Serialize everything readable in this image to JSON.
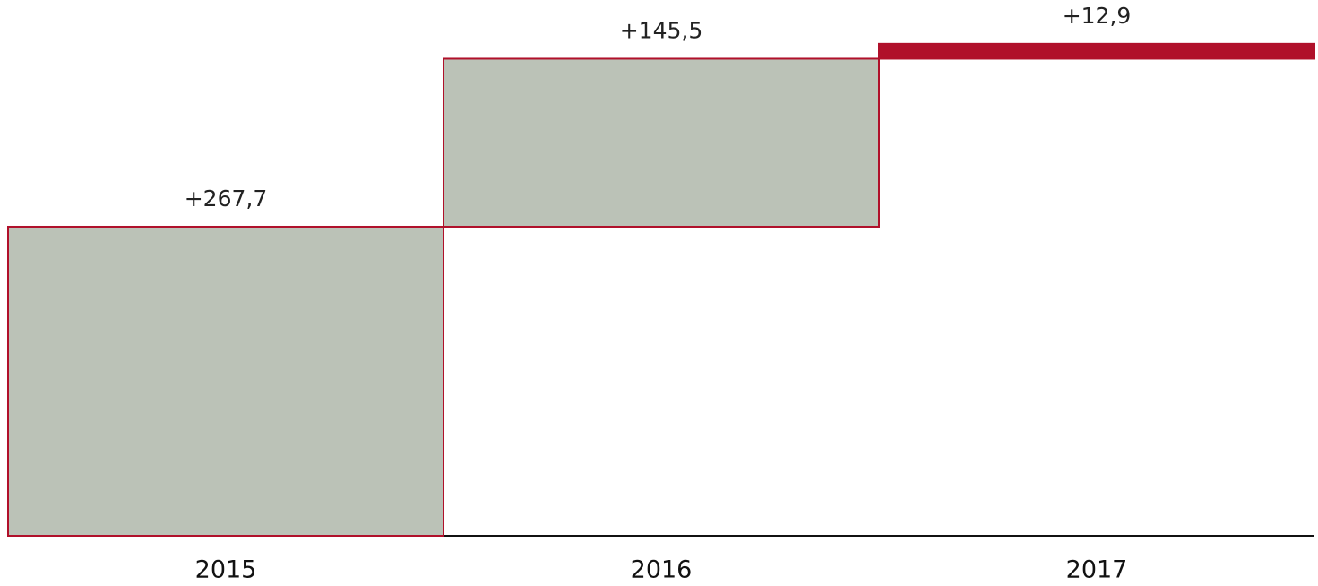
{
  "chart_data": {
    "type": "waterfall",
    "categories": [
      "2015",
      "2016",
      "2017"
    ],
    "values": [
      267.7,
      145.5,
      12.9
    ],
    "value_labels": [
      "+267,7",
      "+145,5",
      "+12,9"
    ],
    "colors": [
      "#bbc2b7",
      "#bbc2b7",
      "#b0102a"
    ],
    "edge_color": "#b0102a",
    "ylim": [
      0,
      464
    ]
  }
}
